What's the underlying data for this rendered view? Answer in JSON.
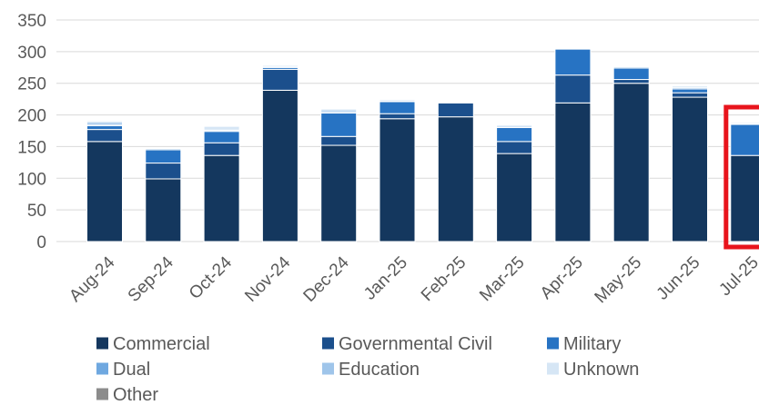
{
  "chart_data": {
    "type": "bar",
    "stacked": true,
    "categories": [
      "Aug-24",
      "Sep-24",
      "Oct-24",
      "Nov-24",
      "Dec-24",
      "Jan-25",
      "Feb-25",
      "Mar-25",
      "Apr-25",
      "May-25",
      "Jun-25",
      "Jul-25"
    ],
    "series": [
      {
        "name": "Commercial",
        "color": "#14375E",
        "values": [
          158,
          99,
          136,
          239,
          152,
          194,
          197,
          139,
          219,
          250,
          228,
          136
        ]
      },
      {
        "name": "Governmental Civil",
        "color": "#1B4F8C",
        "values": [
          19,
          25,
          20,
          33,
          14,
          8,
          22,
          19,
          44,
          6,
          7,
          0
        ]
      },
      {
        "name": "Military",
        "color": "#2773C3",
        "values": [
          6,
          21,
          18,
          3,
          37,
          19,
          0,
          22,
          41,
          18,
          6,
          49
        ]
      },
      {
        "name": "Dual",
        "color": "#6FA8E0",
        "values": [
          2,
          0,
          0,
          1,
          2,
          1,
          1,
          2,
          0,
          0,
          2,
          0
        ]
      },
      {
        "name": "Education",
        "color": "#9FC5EA",
        "values": [
          4,
          2,
          2,
          2,
          3,
          2,
          1,
          2,
          1,
          2,
          2,
          1
        ]
      },
      {
        "name": "Unknown",
        "color": "#D6E6F5",
        "values": [
          2,
          0,
          6,
          1,
          2,
          1,
          1,
          1,
          0,
          0,
          0,
          2
        ]
      },
      {
        "name": "Other",
        "color": "#8C8C8C",
        "values": [
          0,
          0,
          0,
          0,
          0,
          0,
          0,
          0,
          0,
          0,
          0,
          0
        ]
      }
    ],
    "ylim": [
      0,
      350
    ],
    "yticks": [
      0,
      50,
      100,
      150,
      200,
      250,
      300,
      350
    ],
    "xlabel": "",
    "ylabel": "",
    "grid": "horizontal",
    "legend": "bottom",
    "highlight": {
      "category": "Jul-25",
      "color": "#E8141C"
    }
  }
}
